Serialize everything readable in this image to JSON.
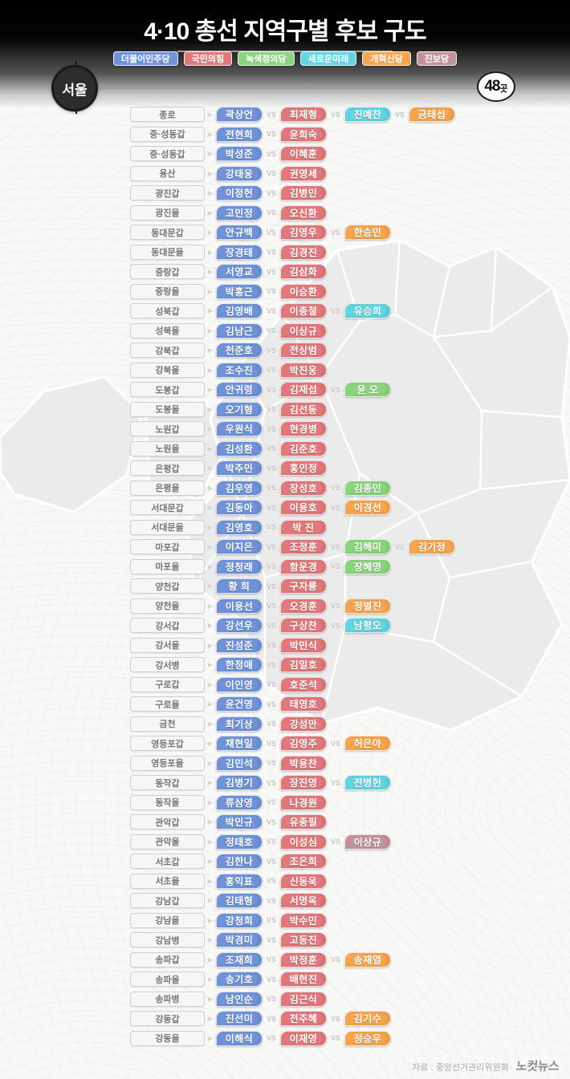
{
  "header": {
    "title": "4·10 총선 지역구별 후보 구도",
    "region_badge": "서울",
    "count_badge": {
      "number": "48",
      "unit": "곳"
    },
    "legend": [
      {
        "key": "dem",
        "label": "더불어민주당",
        "color": "#7093d8"
      },
      {
        "key": "ppp",
        "label": "국민의힘",
        "color": "#e0797c"
      },
      {
        "key": "grn",
        "label": "녹색정의당",
        "color": "#8bd37e"
      },
      {
        "key": "nfm",
        "label": "새로운미래",
        "color": "#63d4e0"
      },
      {
        "key": "ref",
        "label": "개혁신당",
        "color": "#f5a54f"
      },
      {
        "key": "prg",
        "label": "진보당",
        "color": "#c2939b"
      }
    ]
  },
  "party_colors": {
    "dem": "#7093d8",
    "ppp": "#e0797c",
    "grn": "#8bd37e",
    "nfm": "#63d4e0",
    "ref": "#f5a54f",
    "prg": "#c2939b"
  },
  "vs_label": "VS",
  "icons": {
    "row_arrow": "▶"
  },
  "rows": [
    {
      "district": "종로",
      "candidates": [
        {
          "name": "곽상언",
          "party": "dem"
        },
        {
          "name": "최재형",
          "party": "ppp"
        },
        {
          "name": "진예찬",
          "party": "nfm"
        },
        {
          "name": "금태섭",
          "party": "ref"
        }
      ]
    },
    {
      "district": "중·성동갑",
      "candidates": [
        {
          "name": "전현희",
          "party": "dem"
        },
        {
          "name": "윤희숙",
          "party": "ppp"
        }
      ]
    },
    {
      "district": "중·성동갑",
      "candidates": [
        {
          "name": "박성준",
          "party": "dem"
        },
        {
          "name": "이혜훈",
          "party": "ppp"
        }
      ]
    },
    {
      "district": "용산",
      "candidates": [
        {
          "name": "강태웅",
          "party": "dem"
        },
        {
          "name": "권영세",
          "party": "ppp"
        }
      ]
    },
    {
      "district": "광진갑",
      "candidates": [
        {
          "name": "이정헌",
          "party": "dem"
        },
        {
          "name": "김병민",
          "party": "ppp"
        }
      ]
    },
    {
      "district": "광진을",
      "candidates": [
        {
          "name": "고민정",
          "party": "dem"
        },
        {
          "name": "오신환",
          "party": "ppp"
        }
      ]
    },
    {
      "district": "동대문갑",
      "candidates": [
        {
          "name": "안규백",
          "party": "dem"
        },
        {
          "name": "김영우",
          "party": "ppp"
        },
        {
          "name": "한승민",
          "party": "ref"
        }
      ]
    },
    {
      "district": "동대문을",
      "candidates": [
        {
          "name": "장경태",
          "party": "dem"
        },
        {
          "name": "김경진",
          "party": "ppp"
        }
      ]
    },
    {
      "district": "중랑갑",
      "candidates": [
        {
          "name": "서영교",
          "party": "dem"
        },
        {
          "name": "김삼화",
          "party": "ppp"
        }
      ]
    },
    {
      "district": "중랑을",
      "candidates": [
        {
          "name": "박홍근",
          "party": "dem"
        },
        {
          "name": "이승환",
          "party": "ppp"
        }
      ]
    },
    {
      "district": "성북갑",
      "candidates": [
        {
          "name": "김영배",
          "party": "dem"
        },
        {
          "name": "이종철",
          "party": "ppp"
        },
        {
          "name": "유승희",
          "party": "nfm"
        }
      ]
    },
    {
      "district": "성북을",
      "candidates": [
        {
          "name": "김남근",
          "party": "dem"
        },
        {
          "name": "이상규",
          "party": "ppp"
        }
      ]
    },
    {
      "district": "강북갑",
      "candidates": [
        {
          "name": "천준호",
          "party": "dem"
        },
        {
          "name": "전상범",
          "party": "ppp"
        }
      ]
    },
    {
      "district": "강북을",
      "candidates": [
        {
          "name": "조수진",
          "party": "dem"
        },
        {
          "name": "박진웅",
          "party": "ppp"
        }
      ]
    },
    {
      "district": "도봉갑",
      "candidates": [
        {
          "name": "안귀령",
          "party": "dem"
        },
        {
          "name": "김재섭",
          "party": "ppp"
        },
        {
          "name": "윤 오",
          "party": "grn"
        }
      ]
    },
    {
      "district": "도봉을",
      "candidates": [
        {
          "name": "오기형",
          "party": "dem"
        },
        {
          "name": "김선동",
          "party": "ppp"
        }
      ]
    },
    {
      "district": "노원갑",
      "candidates": [
        {
          "name": "우원식",
          "party": "dem"
        },
        {
          "name": "현경병",
          "party": "ppp"
        }
      ]
    },
    {
      "district": "노원을",
      "candidates": [
        {
          "name": "김성환",
          "party": "dem"
        },
        {
          "name": "김준호",
          "party": "ppp"
        }
      ]
    },
    {
      "district": "은평갑",
      "candidates": [
        {
          "name": "박주민",
          "party": "dem"
        },
        {
          "name": "홍인정",
          "party": "ppp"
        }
      ]
    },
    {
      "district": "은평을",
      "candidates": [
        {
          "name": "김우영",
          "party": "dem"
        },
        {
          "name": "장성호",
          "party": "ppp"
        },
        {
          "name": "김종민",
          "party": "grn"
        }
      ]
    },
    {
      "district": "서대문갑",
      "candidates": [
        {
          "name": "김동아",
          "party": "dem"
        },
        {
          "name": "이용호",
          "party": "ppp"
        },
        {
          "name": "이경선",
          "party": "ref"
        }
      ]
    },
    {
      "district": "서대문을",
      "candidates": [
        {
          "name": "김영호",
          "party": "dem"
        },
        {
          "name": "박 진",
          "party": "ppp"
        }
      ]
    },
    {
      "district": "마포갑",
      "candidates": [
        {
          "name": "이지은",
          "party": "dem"
        },
        {
          "name": "조정훈",
          "party": "ppp"
        },
        {
          "name": "김혜미",
          "party": "grn"
        },
        {
          "name": "김기정",
          "party": "ref"
        }
      ]
    },
    {
      "district": "마포을",
      "candidates": [
        {
          "name": "정청래",
          "party": "dem"
        },
        {
          "name": "함운경",
          "party": "ppp"
        },
        {
          "name": "장혜영",
          "party": "grn"
        }
      ]
    },
    {
      "district": "양천갑",
      "candidates": [
        {
          "name": "황 희",
          "party": "dem"
        },
        {
          "name": "구자룡",
          "party": "ppp"
        }
      ]
    },
    {
      "district": "양천을",
      "candidates": [
        {
          "name": "이용선",
          "party": "dem"
        },
        {
          "name": "오경훈",
          "party": "ppp"
        },
        {
          "name": "정별진",
          "party": "ref"
        }
      ]
    },
    {
      "district": "강서갑",
      "candidates": [
        {
          "name": "강선우",
          "party": "dem"
        },
        {
          "name": "구상찬",
          "party": "ppp"
        },
        {
          "name": "남평오",
          "party": "nfm"
        }
      ]
    },
    {
      "district": "강서을",
      "candidates": [
        {
          "name": "진성준",
          "party": "dem"
        },
        {
          "name": "박민식",
          "party": "ppp"
        }
      ]
    },
    {
      "district": "강서병",
      "candidates": [
        {
          "name": "한정애",
          "party": "dem"
        },
        {
          "name": "김일호",
          "party": "ppp"
        }
      ]
    },
    {
      "district": "구로갑",
      "candidates": [
        {
          "name": "이인영",
          "party": "dem"
        },
        {
          "name": "호준석",
          "party": "ppp"
        }
      ]
    },
    {
      "district": "구로을",
      "candidates": [
        {
          "name": "윤건영",
          "party": "dem"
        },
        {
          "name": "태영호",
          "party": "ppp"
        }
      ]
    },
    {
      "district": "금천",
      "candidates": [
        {
          "name": "최기상",
          "party": "dem"
        },
        {
          "name": "강성만",
          "party": "ppp"
        }
      ]
    },
    {
      "district": "영등포갑",
      "candidates": [
        {
          "name": "채현일",
          "party": "dem"
        },
        {
          "name": "김영주",
          "party": "ppp"
        },
        {
          "name": "허은아",
          "party": "ref"
        }
      ]
    },
    {
      "district": "영등포을",
      "candidates": [
        {
          "name": "김민석",
          "party": "dem"
        },
        {
          "name": "박용찬",
          "party": "ppp"
        }
      ]
    },
    {
      "district": "동작갑",
      "candidates": [
        {
          "name": "김병기",
          "party": "dem"
        },
        {
          "name": "장진영",
          "party": "ppp"
        },
        {
          "name": "전병헌",
          "party": "nfm"
        }
      ]
    },
    {
      "district": "동작을",
      "candidates": [
        {
          "name": "류삼영",
          "party": "dem"
        },
        {
          "name": "나경원",
          "party": "ppp"
        }
      ]
    },
    {
      "district": "관악갑",
      "candidates": [
        {
          "name": "박민규",
          "party": "dem"
        },
        {
          "name": "유종필",
          "party": "ppp"
        }
      ]
    },
    {
      "district": "관악을",
      "candidates": [
        {
          "name": "정태호",
          "party": "dem"
        },
        {
          "name": "이성심",
          "party": "ppp"
        },
        {
          "name": "이상규",
          "party": "prg"
        }
      ]
    },
    {
      "district": "서초갑",
      "candidates": [
        {
          "name": "김한나",
          "party": "dem"
        },
        {
          "name": "조은희",
          "party": "ppp"
        }
      ]
    },
    {
      "district": "서초을",
      "candidates": [
        {
          "name": "홍익표",
          "party": "dem"
        },
        {
          "name": "신동욱",
          "party": "ppp"
        }
      ]
    },
    {
      "district": "강남갑",
      "candidates": [
        {
          "name": "김태형",
          "party": "dem"
        },
        {
          "name": "서명옥",
          "party": "ppp"
        }
      ]
    },
    {
      "district": "강남을",
      "candidates": [
        {
          "name": "강청희",
          "party": "dem"
        },
        {
          "name": "박수민",
          "party": "ppp"
        }
      ]
    },
    {
      "district": "강남병",
      "candidates": [
        {
          "name": "박경미",
          "party": "dem"
        },
        {
          "name": "고동진",
          "party": "ppp"
        }
      ]
    },
    {
      "district": "송파갑",
      "candidates": [
        {
          "name": "조재희",
          "party": "dem"
        },
        {
          "name": "박정훈",
          "party": "ppp"
        },
        {
          "name": "송재열",
          "party": "ref"
        }
      ]
    },
    {
      "district": "송파을",
      "candidates": [
        {
          "name": "송기호",
          "party": "dem"
        },
        {
          "name": "배현진",
          "party": "ppp"
        }
      ]
    },
    {
      "district": "송파병",
      "candidates": [
        {
          "name": "남인순",
          "party": "dem"
        },
        {
          "name": "김근식",
          "party": "ppp"
        }
      ]
    },
    {
      "district": "강동갑",
      "candidates": [
        {
          "name": "진선미",
          "party": "dem"
        },
        {
          "name": "전주혜",
          "party": "ppp"
        },
        {
          "name": "김기수",
          "party": "ref"
        }
      ]
    },
    {
      "district": "강동을",
      "candidates": [
        {
          "name": "이해식",
          "party": "dem"
        },
        {
          "name": "이재영",
          "party": "ppp"
        },
        {
          "name": "정승우",
          "party": "ref"
        }
      ]
    }
  ],
  "footer": {
    "source": "자료 : 중앙선거관리위원회",
    "press": "노컷뉴스"
  }
}
